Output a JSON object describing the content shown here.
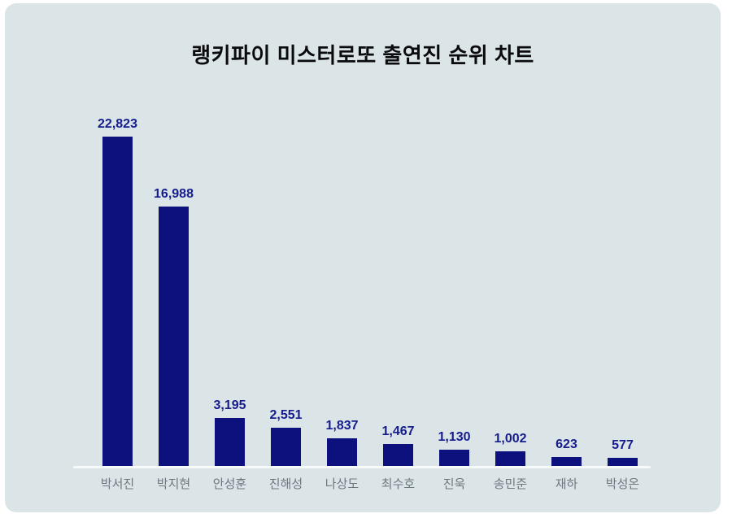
{
  "chart_data": {
    "type": "bar",
    "title": "랭키파이 미스터로또 출연진 순위 차트",
    "categories": [
      "박서진",
      "박지현",
      "안성훈",
      "진해성",
      "나상도",
      "최수호",
      "진욱",
      "송민준",
      "재하",
      "박성온"
    ],
    "values": [
      22823,
      16988,
      3195,
      2551,
      1837,
      1467,
      1130,
      1002,
      623,
      577
    ],
    "value_labels": [
      "22,823",
      "16,988",
      "3,195",
      "2,551",
      "1,837",
      "1,467",
      "1,130",
      "1,002",
      "623",
      "577"
    ],
    "xlabel": "",
    "ylabel": "",
    "ylim": [
      0,
      22823
    ],
    "grid": false,
    "legend": "none",
    "colors": {
      "panel_background": "#dbe5e8",
      "bar": "#0d117e",
      "value_label": "#151c8c",
      "category_label": "#6e7780",
      "title": "#0b0b0d",
      "axis_line": "#f6fafb"
    }
  }
}
